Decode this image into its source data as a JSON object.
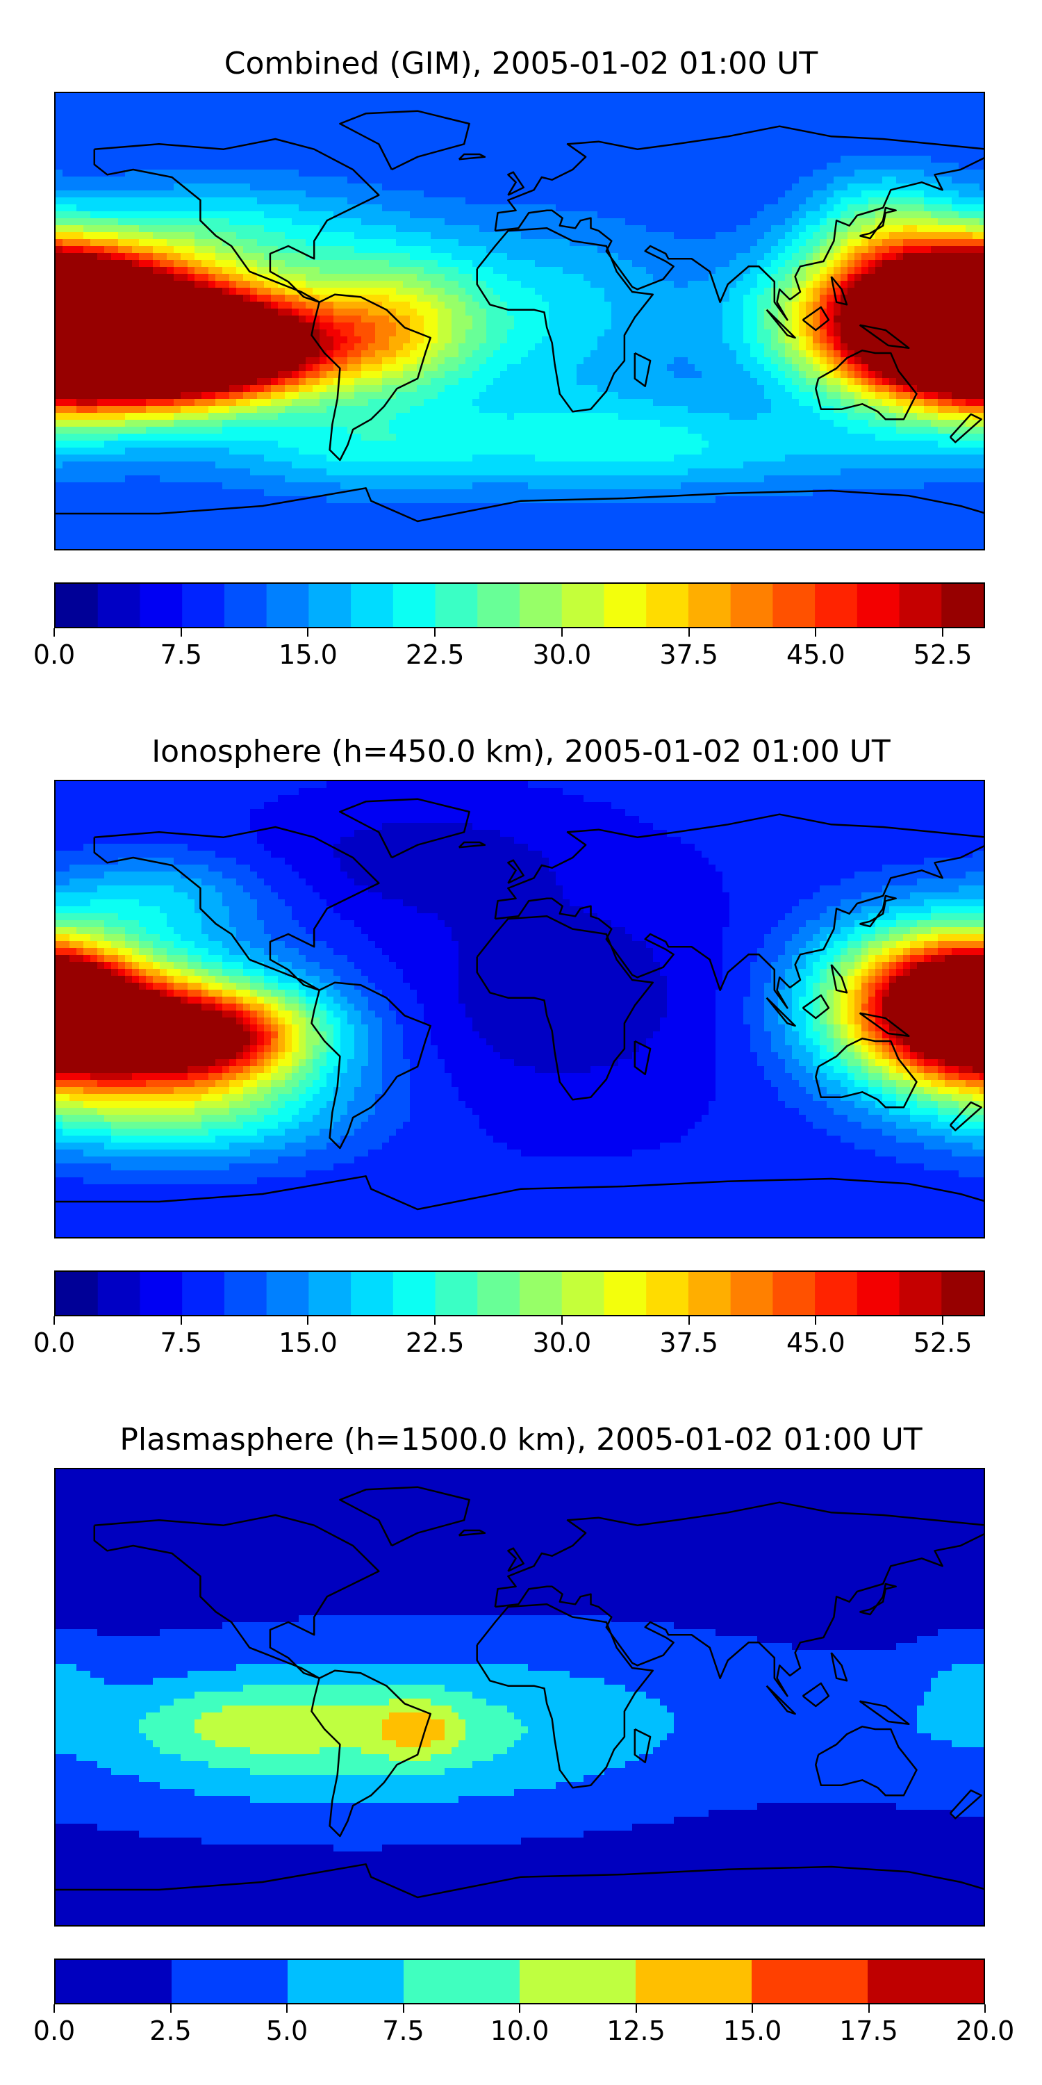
{
  "chart_data": [
    {
      "type": "heatmap",
      "title": "Combined (GIM), 2005-01-02 01:00 UT",
      "colorbar": {
        "min": 0.0,
        "max": 55.0,
        "step": 2.5,
        "ticks": [
          "0.0",
          "7.5",
          "15.0",
          "22.5",
          "30.0",
          "37.5",
          "45.0",
          "52.5"
        ],
        "tick_values": [
          0.0,
          7.5,
          15.0,
          22.5,
          30.0,
          37.5,
          45.0,
          52.5
        ]
      },
      "features": [
        {
          "lon": -180,
          "lat": 0,
          "value": 52,
          "sx": 40,
          "sy": 20
        },
        {
          "lon": -120,
          "lat": -10,
          "value": 52,
          "sx": 30,
          "sy": 12
        },
        {
          "lon": -135,
          "lat": -8,
          "value": 47,
          "sx": 55,
          "sy": 18
        },
        {
          "lon": -170,
          "lat": -5,
          "value": 40,
          "sx": 40,
          "sy": 22
        },
        {
          "lon": -50,
          "lat": 0,
          "value": 29,
          "sx": 25,
          "sy": 20
        },
        {
          "lon": 10,
          "lat": 5,
          "value": 20,
          "sx": 40,
          "sy": 25
        },
        {
          "lon": 150,
          "lat": 5,
          "value": 40,
          "sx": 35,
          "sy": 20
        },
        {
          "lon": 178,
          "lat": 2,
          "value": 50,
          "sx": 20,
          "sy": 14
        },
        {
          "lon": 140,
          "lat": 40,
          "value": 22,
          "sx": 20,
          "sy": 15
        },
        {
          "lon": -110,
          "lat": 35,
          "value": 21,
          "sx": 40,
          "sy": 15
        },
        {
          "lon": -60,
          "lat": -50,
          "value": 21,
          "sx": 40,
          "sy": 12
        },
        {
          "lon": 90,
          "lat": -50,
          "value": 17,
          "sx": 60,
          "sy": 12
        },
        {
          "lon": 30,
          "lat": -45,
          "value": 18,
          "sx": 40,
          "sy": 15
        }
      ],
      "base_value": 10
    },
    {
      "type": "heatmap",
      "title": "Ionosphere  (h=450.0 km), 2005-01-02 01:00 UT",
      "colorbar": {
        "min": 0.0,
        "max": 55.0,
        "step": 2.5,
        "ticks": [
          "0.0",
          "7.5",
          "15.0",
          "22.5",
          "30.0",
          "37.5",
          "45.0",
          "52.5"
        ],
        "tick_values": [
          0.0,
          7.5,
          15.0,
          22.5,
          30.0,
          37.5,
          45.0,
          52.5
        ]
      },
      "features": [
        {
          "lon": -180,
          "lat": 0,
          "value": 40,
          "sx": 30,
          "sy": 20
        },
        {
          "lon": -125,
          "lat": -10,
          "value": 45,
          "sx": 30,
          "sy": 12
        },
        {
          "lon": -145,
          "lat": -8,
          "value": 36,
          "sx": 50,
          "sy": 22
        },
        {
          "lon": 150,
          "lat": 5,
          "value": 35,
          "sx": 30,
          "sy": 22
        },
        {
          "lon": 178,
          "lat": 2,
          "value": 38,
          "sx": 20,
          "sy": 14
        },
        {
          "lon": -140,
          "lat": 45,
          "value": 18,
          "sx": 30,
          "sy": 12
        },
        {
          "lon": -130,
          "lat": -40,
          "value": 22,
          "sx": 45,
          "sy": 14
        },
        {
          "lon": 10,
          "lat": 5,
          "value": 2,
          "sx": 50,
          "sy": 30
        },
        {
          "lon": -40,
          "lat": 60,
          "value": 3,
          "sx": 40,
          "sy": 15
        }
      ],
      "base_value": 8
    },
    {
      "type": "heatmap",
      "title": "Plasmasphere (h=1500.0 km), 2005-01-02 01:00 UT",
      "colorbar": {
        "min": 0.0,
        "max": 20.0,
        "step": 2.5,
        "ticks": [
          "0.0",
          "2.5",
          "5.0",
          "7.5",
          "10.0",
          "12.5",
          "15.0",
          "17.5",
          "20.0"
        ],
        "tick_values": [
          0.0,
          2.5,
          5.0,
          7.5,
          10.0,
          12.5,
          15.0,
          17.5,
          20.0
        ]
      },
      "features": [
        {
          "lon": -75,
          "lat": -15,
          "value": 9,
          "sx": 80,
          "sy": 22
        },
        {
          "lon": -105,
          "lat": -10,
          "value": 6,
          "sx": 30,
          "sy": 10
        },
        {
          "lon": -40,
          "lat": -12,
          "value": 8,
          "sx": 12,
          "sy": 8
        },
        {
          "lon": 20,
          "lat": -5,
          "value": 4,
          "sx": 80,
          "sy": 25
        },
        {
          "lon": 175,
          "lat": 5,
          "value": 5,
          "sx": 15,
          "sy": 12
        },
        {
          "lon": 130,
          "lat": -15,
          "value": 3,
          "sx": 25,
          "sy": 12
        }
      ],
      "base_value": 1.5
    }
  ]
}
